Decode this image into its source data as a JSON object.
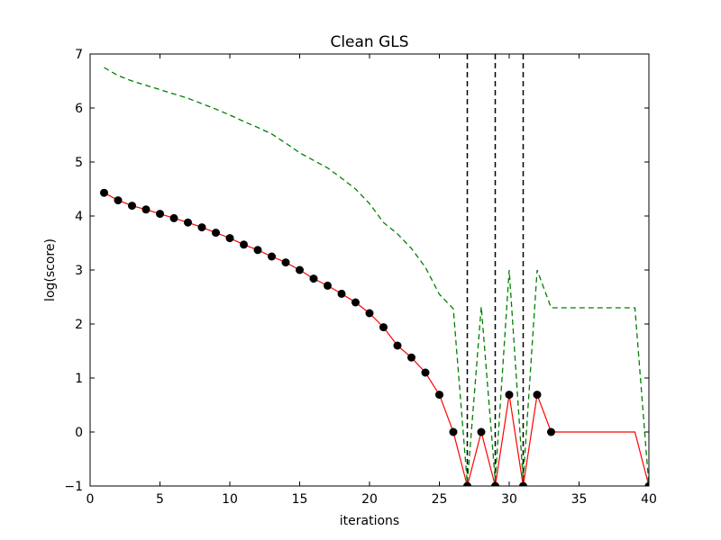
{
  "chart_data": {
    "type": "line",
    "title": "Clean GLS",
    "xlabel": "iterations",
    "ylabel": "log(score)",
    "xlim": [
      0,
      40
    ],
    "ylim": [
      -1,
      7
    ],
    "xticks": [
      "0",
      "5",
      "10",
      "15",
      "20",
      "25",
      "30",
      "35",
      "40"
    ],
    "yticks": [
      "−1",
      "0",
      "1",
      "2",
      "3",
      "4",
      "5",
      "6",
      "7"
    ],
    "grid": false,
    "series": [
      {
        "style": "solid-with-markers",
        "color": "#ff0000",
        "marker_color": "#000000",
        "x": [
          1,
          2,
          3,
          4,
          5,
          6,
          7,
          8,
          9,
          10,
          11,
          12,
          13,
          14,
          15,
          16,
          17,
          18,
          19,
          20,
          21,
          22,
          23,
          24,
          25,
          26,
          27,
          28,
          29,
          30,
          31,
          32,
          33,
          39,
          40
        ],
        "y": [
          4.43,
          4.29,
          4.19,
          4.12,
          4.04,
          3.96,
          3.88,
          3.79,
          3.69,
          3.59,
          3.47,
          3.37,
          3.25,
          3.14,
          3.0,
          2.84,
          2.71,
          2.56,
          2.4,
          2.2,
          1.94,
          1.6,
          1.38,
          1.1,
          0.69,
          0.0,
          -1.0,
          0.0,
          -1.0,
          0.69,
          -1.0,
          0.69,
          0.0,
          0.0,
          -1.0
        ],
        "markers_x": [
          1,
          2,
          3,
          4,
          5,
          6,
          7,
          8,
          9,
          10,
          11,
          12,
          13,
          14,
          15,
          16,
          17,
          18,
          19,
          20,
          21,
          22,
          23,
          24,
          25,
          26,
          27,
          28,
          29,
          30,
          31,
          32,
          33,
          40
        ]
      },
      {
        "style": "dashed",
        "color": "#008000",
        "x": [
          1,
          2,
          3,
          4,
          5,
          6,
          7,
          8,
          9,
          10,
          11,
          12,
          13,
          14,
          15,
          16,
          17,
          18,
          19,
          20,
          21,
          22,
          23,
          24,
          25,
          26,
          27,
          28,
          29,
          30,
          31,
          32,
          33,
          39,
          40
        ],
        "y": [
          6.75,
          6.6,
          6.5,
          6.42,
          6.34,
          6.26,
          6.18,
          6.08,
          5.98,
          5.87,
          5.75,
          5.64,
          5.52,
          5.35,
          5.17,
          5.03,
          4.89,
          4.7,
          4.5,
          4.23,
          3.88,
          3.67,
          3.4,
          3.05,
          2.55,
          2.28,
          -0.95,
          2.32,
          -0.9,
          3.0,
          -0.9,
          3.0,
          2.3,
          2.3,
          -1.0
        ]
      }
    ],
    "vertical_dashed_lines_x": [
      27,
      29,
      31
    ],
    "vertical_line_color": "#000000"
  }
}
